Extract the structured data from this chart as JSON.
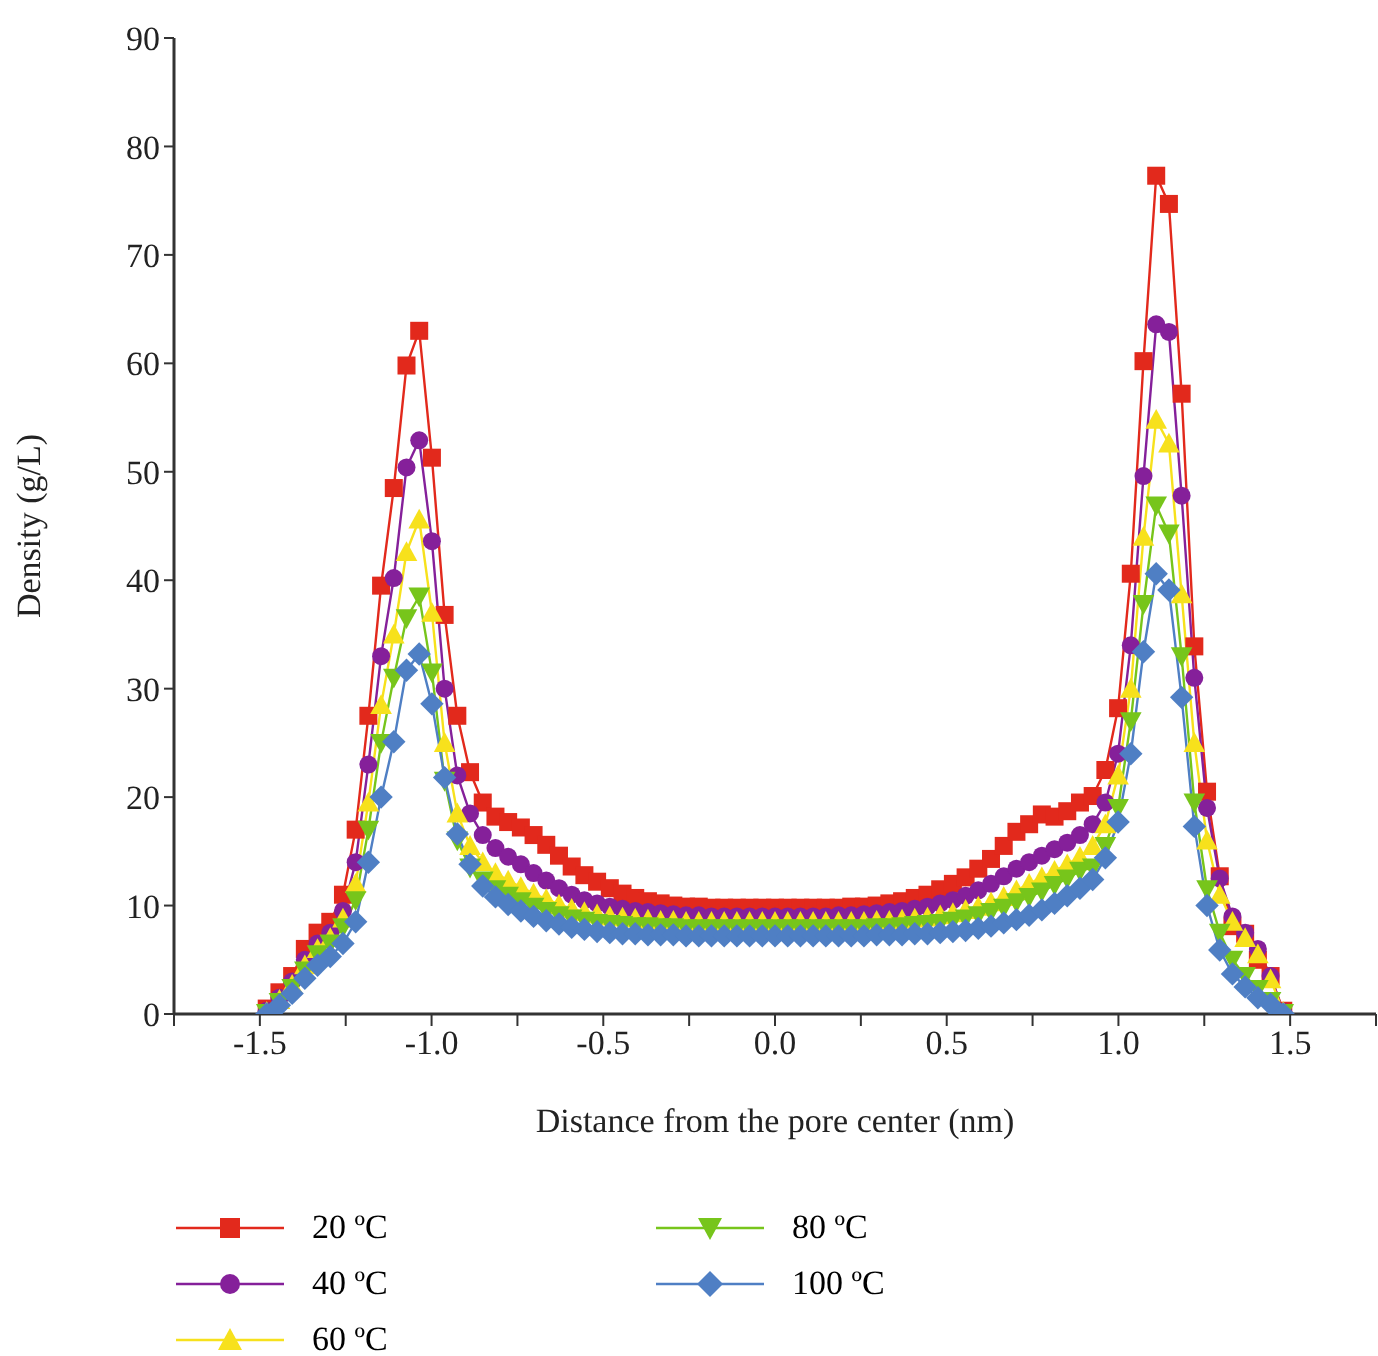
{
  "chart_data": {
    "type": "line",
    "xlabel": "Distance from the pore center (nm)",
    "ylabel": "Density (g/L)",
    "x": [
      -1.48,
      -1.443,
      -1.406,
      -1.369,
      -1.332,
      -1.295,
      -1.258,
      -1.221,
      -1.184,
      -1.147,
      -1.11,
      -1.073,
      -1.036,
      -0.999,
      -0.962,
      -0.925,
      -0.888,
      -0.851,
      -0.814,
      -0.777,
      -0.74,
      -0.703,
      -0.666,
      -0.629,
      -0.592,
      -0.555,
      -0.518,
      -0.481,
      -0.444,
      -0.407,
      -0.37,
      -0.333,
      -0.296,
      -0.259,
      -0.222,
      -0.185,
      -0.148,
      -0.111,
      -0.074,
      -0.037,
      0,
      0.037,
      0.074,
      0.111,
      0.148,
      0.185,
      0.222,
      0.259,
      0.296,
      0.333,
      0.37,
      0.407,
      0.444,
      0.481,
      0.518,
      0.555,
      0.592,
      0.629,
      0.666,
      0.703,
      0.74,
      0.777,
      0.814,
      0.851,
      0.888,
      0.925,
      0.962,
      0.999,
      1.036,
      1.073,
      1.11,
      1.147,
      1.184,
      1.221,
      1.258,
      1.295,
      1.332,
      1.369,
      1.406,
      1.443,
      1.48
    ],
    "series": [
      {
        "name": "20 ºC",
        "color": "#e2291c",
        "marker": "square",
        "values": [
          0.5,
          2,
          3.5,
          6,
          7.5,
          8.5,
          11,
          17,
          27.5,
          39.5,
          48.5,
          59.8,
          63,
          51.3,
          36.8,
          27.5,
          22.3,
          19.5,
          18.2,
          17.7,
          17.2,
          16.5,
          15.6,
          14.6,
          13.6,
          12.8,
          12.2,
          11.6,
          11.1,
          10.7,
          10.4,
          10.2,
          10,
          9.9,
          9.9,
          9.8,
          9.8,
          9.8,
          9.8,
          9.8,
          9.8,
          9.8,
          9.8,
          9.8,
          9.8,
          9.8,
          9.9,
          9.9,
          10,
          10.2,
          10.4,
          10.7,
          11,
          11.5,
          12,
          12.6,
          13.4,
          14.3,
          15.5,
          16.8,
          17.5,
          18.4,
          18.2,
          18.7,
          19.5,
          20.1,
          22.5,
          28.2,
          40.6,
          60.2,
          77.3,
          74.7,
          57.2,
          33.9,
          20.5,
          12.7,
          8.1,
          7.4,
          5,
          3.5,
          0.3
        ]
      },
      {
        "name": "40 ºC",
        "color": "#85209a",
        "marker": "circle",
        "values": [
          0.3,
          1.5,
          3,
          5,
          6.5,
          7.5,
          9.5,
          14,
          23,
          33,
          40.2,
          50.4,
          52.9,
          43.6,
          30,
          22,
          18.5,
          16.5,
          15.3,
          14.5,
          13.8,
          13,
          12.3,
          11.6,
          11,
          10.5,
          10.2,
          9.9,
          9.7,
          9.5,
          9.4,
          9.3,
          9.2,
          9.1,
          9.1,
          9,
          9,
          9,
          9,
          9,
          9,
          9,
          9,
          9,
          9,
          9.1,
          9.1,
          9.2,
          9.3,
          9.4,
          9.5,
          9.7,
          9.9,
          10.2,
          10.5,
          10.9,
          11.4,
          12,
          12.7,
          13.4,
          14,
          14.6,
          15.2,
          15.8,
          16.5,
          17.5,
          19.5,
          24,
          34,
          49.6,
          63.6,
          62.9,
          47.8,
          31,
          19,
          12.5,
          9,
          7.5,
          6,
          3.5,
          0.2
        ]
      },
      {
        "name": "60 ºC",
        "color": "#f7e11c",
        "marker": "triangle",
        "values": [
          0.2,
          1.3,
          2.7,
          4.5,
          6,
          7,
          8.8,
          12,
          19.5,
          28.5,
          35,
          42.6,
          45.6,
          37,
          25,
          18.5,
          15.5,
          14,
          13,
          12.3,
          11.7,
          11.1,
          10.6,
          10.1,
          9.7,
          9.4,
          9.2,
          9,
          8.9,
          8.8,
          8.7,
          8.6,
          8.6,
          8.5,
          8.5,
          8.5,
          8.5,
          8.5,
          8.5,
          8.5,
          8.5,
          8.5,
          8.5,
          8.5,
          8.5,
          8.5,
          8.5,
          8.5,
          8.6,
          8.6,
          8.7,
          8.8,
          8.9,
          9.1,
          9.3,
          9.6,
          9.9,
          10.3,
          10.8,
          11.4,
          12,
          12.6,
          13.2,
          13.8,
          14.5,
          15.5,
          17.5,
          22,
          30,
          44,
          54.8,
          52.6,
          38.7,
          25,
          16,
          11,
          8.5,
          7,
          5.5,
          3.2,
          0.2
        ]
      },
      {
        "name": "80 ºC",
        "color": "#77c51b",
        "marker": "triangle-down",
        "values": [
          0.1,
          1.1,
          2.4,
          4,
          5.5,
          6.5,
          8,
          10.5,
          17,
          25,
          31,
          36.5,
          38.5,
          31.5,
          21.5,
          16,
          13.5,
          12.3,
          11.5,
          10.9,
          10.4,
          9.9,
          9.5,
          9.1,
          8.8,
          8.6,
          8.4,
          8.3,
          8.2,
          8.1,
          8.1,
          8,
          8,
          7.9,
          7.9,
          7.9,
          7.9,
          7.9,
          7.9,
          7.9,
          7.9,
          7.9,
          7.9,
          7.9,
          7.9,
          7.9,
          7.9,
          7.9,
          8,
          8,
          8.1,
          8.2,
          8.3,
          8.4,
          8.6,
          8.8,
          9.1,
          9.4,
          9.8,
          10.3,
          10.8,
          11.3,
          11.9,
          12.5,
          13.2,
          13.5,
          15.5,
          19,
          27,
          37.8,
          46.9,
          44.3,
          33,
          19.5,
          11.5,
          7.5,
          5,
          3.5,
          2.3,
          1.2,
          0.1
        ]
      },
      {
        "name": "100 ºC",
        "color": "#4f7fc4",
        "marker": "diamond",
        "values": [
          0,
          0.8,
          1.9,
          3.3,
          4.5,
          5.3,
          6.5,
          8.5,
          14,
          20,
          25.1,
          31.7,
          33.2,
          28.6,
          21.8,
          16.6,
          13.8,
          11.8,
          10.8,
          10.1,
          9.5,
          9,
          8.6,
          8.3,
          8,
          7.8,
          7.6,
          7.5,
          7.4,
          7.4,
          7.3,
          7.3,
          7.3,
          7.2,
          7.2,
          7.2,
          7.2,
          7.2,
          7.2,
          7.2,
          7.2,
          7.2,
          7.2,
          7.2,
          7.2,
          7.2,
          7.2,
          7.2,
          7.3,
          7.3,
          7.3,
          7.4,
          7.4,
          7.5,
          7.6,
          7.7,
          7.9,
          8.1,
          8.4,
          8.7,
          9.1,
          9.6,
          10.2,
          10.9,
          11.6,
          12.4,
          14.4,
          17.7,
          24,
          33.4,
          40.6,
          39.1,
          29.2,
          17.3,
          10,
          5.9,
          3.7,
          2.5,
          1.5,
          0.9,
          0
        ]
      }
    ],
    "xlim": [
      -1.75,
      1.75
    ],
    "xticks": [
      {
        "value": -1.75,
        "label": null
      },
      {
        "value": -1.5,
        "label": "-1.5"
      },
      {
        "value": -1.25,
        "label": null
      },
      {
        "value": -1.0,
        "label": "-1.0"
      },
      {
        "value": -0.75,
        "label": null
      },
      {
        "value": -0.5,
        "label": "-0.5"
      },
      {
        "value": -0.25,
        "label": null
      },
      {
        "value": 0,
        "label": "0.0"
      },
      {
        "value": 0.25,
        "label": null
      },
      {
        "value": 0.5,
        "label": "0.5"
      },
      {
        "value": 0.75,
        "label": null
      },
      {
        "value": 1.0,
        "label": "1.0"
      },
      {
        "value": 1.25,
        "label": null
      },
      {
        "value": 1.5,
        "label": "1.5"
      },
      {
        "value": 1.75,
        "label": null
      }
    ],
    "ylim": [
      0,
      90
    ],
    "yticks": [
      0,
      10,
      20,
      30,
      40,
      50,
      60,
      70,
      80,
      90
    ],
    "grid": false,
    "legend": "bottom",
    "line_style": "solid"
  }
}
